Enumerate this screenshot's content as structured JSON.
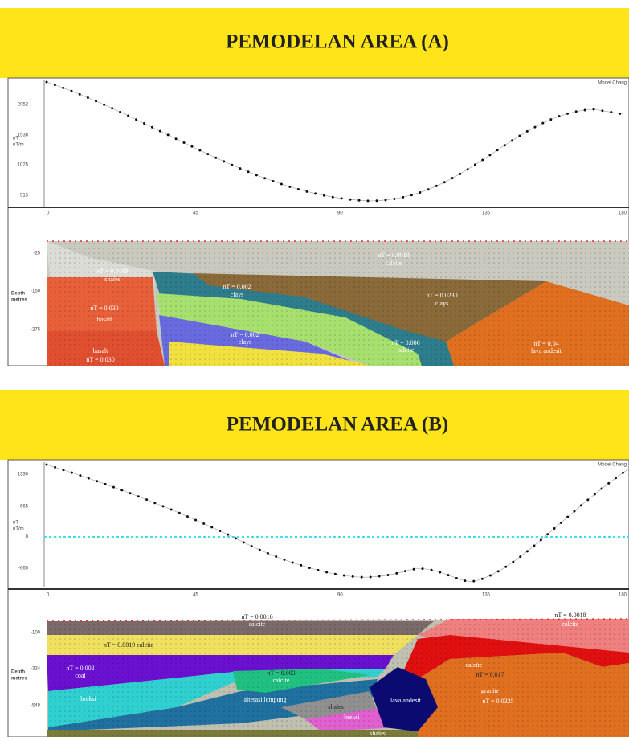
{
  "panels": [
    {
      "title": "PEMODELAN AREA (A)",
      "profile": {
        "unit": "nT",
        "unit2": "nT/m",
        "yticks": [
          "2052",
          "1538",
          "1025",
          "513"
        ],
        "legend": "Model Chang"
      },
      "model": {
        "depth": "Depth",
        "depth_unit": "metres",
        "xticks": [
          "0",
          "45",
          "90",
          "135",
          "180"
        ],
        "depth_ticks": [
          "-25",
          "-150",
          "-275"
        ],
        "labels": [
          "nT = 0.0010",
          "calcite",
          "nT = 0.0109",
          "shales",
          "nT = 0.002",
          "clays",
          "nT = 0.0230",
          "clays",
          "nT = 0.030",
          "basalt",
          "basalt",
          "nT = 0.030",
          "nT = 0.002",
          "clays",
          "nT = 0.006",
          "calcite",
          "nT = 0.04",
          "lava andesit"
        ]
      }
    },
    {
      "title": "PEMODELAN AREA (B)",
      "profile": {
        "unit": "nT",
        "unit2": "nT/m",
        "yticks": [
          "1330",
          "665",
          "0",
          "-665"
        ],
        "legend": "Model Chang"
      },
      "model": {
        "depth": "Depth",
        "depth_unit": "metres",
        "xticks": [
          "0",
          "45",
          "90",
          "135",
          "180"
        ],
        "depth_ticks": [
          "-100",
          "-324",
          "-548"
        ],
        "labels": [
          "nT = 0.0016",
          "calcite",
          "nT = 0.0018",
          "calcite",
          "nT = 0.0019 calcite",
          "nT = 0.002",
          "coal",
          "nT = 0.003",
          "calcite",
          "calcite",
          "nT = 0.017",
          "breksi",
          "alterasi lempung",
          "shales",
          "breksi",
          "lava andesit",
          "granite",
          "nT = 0.0325",
          "shales"
        ]
      }
    }
  ]
}
